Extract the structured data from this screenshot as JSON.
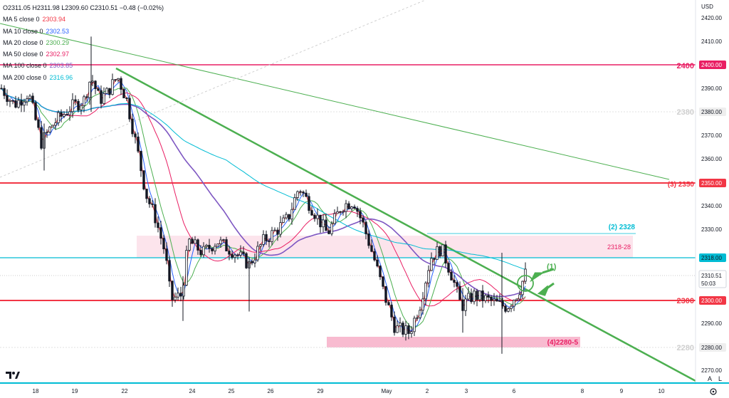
{
  "ohlc": {
    "open": "O2311.05",
    "high": "H2311.98",
    "low": "L2309.60",
    "close": "C2310.51",
    "change": "−0.48 (−0.02%)"
  },
  "legend": [
    {
      "label": "MA 5 close 0",
      "value": "2303.94",
      "color": "#f23645"
    },
    {
      "label": "MA 10 close 0",
      "value": "2302.53",
      "color": "#2962ff"
    },
    {
      "label": "MA 20 close 0",
      "value": "2300.29",
      "color": "#4caf50"
    },
    {
      "label": "MA 50 close 0",
      "value": "2302.97",
      "color": "#e91e63"
    },
    {
      "label": "MA 100 close 0",
      "value": "2303.85",
      "color": "#7e57c2"
    },
    {
      "label": "MA 200 close 0",
      "value": "2316.96",
      "color": "#00bcd4"
    }
  ],
  "currency": "USD",
  "settings_icon": "gear-icon",
  "logo_icon": "tradingview-logo-icon",
  "price_tag": {
    "value": "2310.51",
    "countdown": "50:03"
  },
  "scale_buttons": {
    "auto": "A",
    "log": "L"
  },
  "chart_data": {
    "type": "candlestick",
    "ylim": [
      2268,
      2426
    ],
    "y_ticks": [
      "2420.00",
      "2410.00",
      "2390.00",
      "2370.00",
      "2360.00",
      "2340.00",
      "2330.00",
      "2310.00",
      "2290.00",
      "2270.00"
    ],
    "x_ticks": [
      "18",
      "19",
      "22",
      "24",
      "25",
      "26",
      "29",
      "May",
      "2",
      "3",
      "6",
      "8",
      "9",
      "10"
    ],
    "horizontal_levels": [
      {
        "price": 2400,
        "label": "2400",
        "tag": "2400.00",
        "color": "#e91e63"
      },
      {
        "price": 2350,
        "label": "(3) 2350",
        "tag": "2350.00",
        "color": "#f23645"
      },
      {
        "price": 2318,
        "label": "",
        "tag": "2318.00",
        "color": "#00bcd4"
      },
      {
        "price": 2300,
        "label": "2300",
        "tag": "2300.00",
        "color": "#f23645"
      },
      {
        "price": 2380,
        "label": "2380",
        "tag": "2380.00",
        "color": "#c9c9c9"
      },
      {
        "price": 2280,
        "label": "2280",
        "tag": "2280.00",
        "color": "#c9c9c9"
      }
    ],
    "zones": [
      {
        "label": "2318-28",
        "from": 2318,
        "to": 2328
      },
      {
        "label": "(4)2280-5",
        "from": 2280,
        "to": 2285
      },
      {
        "label": "(2) 2328",
        "from": 2328,
        "to": 2328
      }
    ],
    "annotations": {
      "marker": "(1)"
    }
  }
}
